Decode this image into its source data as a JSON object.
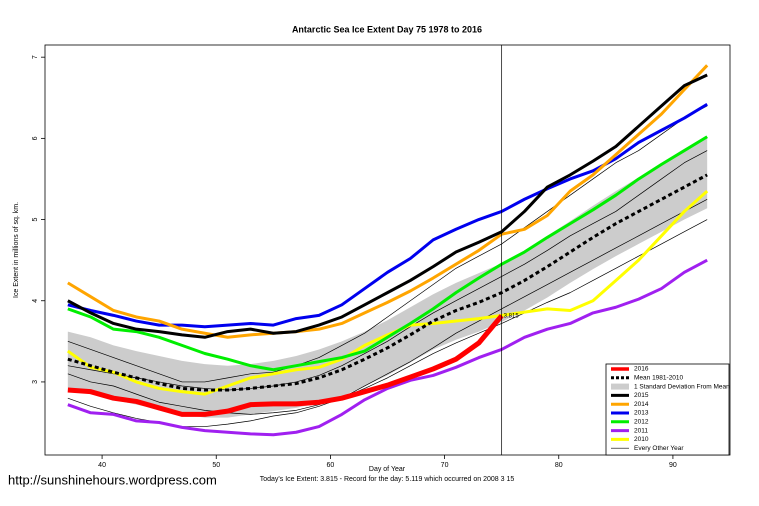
{
  "chart_data": {
    "type": "line",
    "title": "Antarctic Sea Ice Extent Day 75 1978 to 2016",
    "x_label": "Day of Year",
    "y_label": "Ice Extent in millions of sq. km.",
    "footer": "Today's Ice Extent: 3.815  - Record for the day: 5.119 which occurred on 2008 3 15",
    "watermark": "http://sunshinehours.wordpress.com",
    "xlim": [
      35,
      95
    ],
    "ylim": [
      2.1,
      7.15
    ],
    "xticks": [
      40,
      50,
      60,
      70,
      80,
      90
    ],
    "yticks": [
      3,
      4,
      5,
      6,
      7
    ],
    "marker": {
      "x": 75,
      "y": 3.815,
      "label": "3.815",
      "color": "#e05010"
    },
    "x": [
      37,
      39,
      41,
      43,
      45,
      47,
      49,
      51,
      53,
      55,
      57,
      59,
      61,
      63,
      65,
      67,
      69,
      71,
      73,
      75,
      77,
      79,
      81,
      83,
      85,
      87,
      89,
      91,
      93
    ],
    "series": [
      {
        "name": "2016",
        "color": "#ff0000",
        "width": 5,
        "values": [
          2.9,
          2.88,
          2.8,
          2.76,
          2.68,
          2.6,
          2.6,
          2.64,
          2.72,
          2.73,
          2.73,
          2.75,
          2.8,
          2.88,
          2.96,
          3.06,
          3.16,
          3.28,
          3.48,
          3.815,
          null,
          null,
          null,
          null,
          null,
          null,
          null,
          null,
          null
        ]
      },
      {
        "name": "Mean 1981-2010",
        "color": "#000000",
        "width": 3,
        "dashed": true,
        "values": [
          3.28,
          3.2,
          3.12,
          3.05,
          2.98,
          2.92,
          2.9,
          2.9,
          2.92,
          2.95,
          2.98,
          3.05,
          3.15,
          3.28,
          3.42,
          3.58,
          3.75,
          3.88,
          3.98,
          4.1,
          4.25,
          4.42,
          4.6,
          4.78,
          4.95,
          5.1,
          5.25,
          5.4,
          5.55
        ]
      },
      {
        "name": "1 Standard Deviation From Mean",
        "color": "#cccccc",
        "upper": [
          3.62,
          3.55,
          3.45,
          3.38,
          3.32,
          3.26,
          3.22,
          3.2,
          3.22,
          3.26,
          3.32,
          3.4,
          3.5,
          3.62,
          3.76,
          3.92,
          4.08,
          4.22,
          4.34,
          4.46,
          4.62,
          4.8,
          4.98,
          5.17,
          5.35,
          5.52,
          5.68,
          5.84,
          6.0
        ],
        "lower": [
          2.92,
          2.85,
          2.78,
          2.72,
          2.66,
          2.6,
          2.56,
          2.56,
          2.6,
          2.64,
          2.68,
          2.74,
          2.82,
          2.95,
          3.08,
          3.24,
          3.4,
          3.52,
          3.62,
          3.74,
          3.88,
          4.04,
          4.22,
          4.39,
          4.55,
          4.7,
          4.85,
          5.0,
          5.14
        ]
      },
      {
        "name": "2015",
        "color": "#000000",
        "width": 3,
        "values": [
          4.0,
          3.85,
          3.72,
          3.65,
          3.62,
          3.58,
          3.55,
          3.62,
          3.65,
          3.6,
          3.62,
          3.7,
          3.8,
          3.95,
          4.1,
          4.25,
          4.42,
          4.6,
          4.72,
          4.85,
          5.1,
          5.4,
          5.55,
          5.72,
          5.9,
          6.15,
          6.4,
          6.65,
          6.78
        ]
      },
      {
        "name": "2014",
        "color": "#ffa500",
        "width": 3,
        "values": [
          4.22,
          4.05,
          3.88,
          3.8,
          3.75,
          3.65,
          3.6,
          3.55,
          3.58,
          3.6,
          3.62,
          3.65,
          3.72,
          3.85,
          3.98,
          4.12,
          4.28,
          4.45,
          4.62,
          4.82,
          4.88,
          5.05,
          5.35,
          5.55,
          5.8,
          6.05,
          6.3,
          6.6,
          6.9
        ]
      },
      {
        "name": "2013",
        "color": "#0000ee",
        "width": 3,
        "values": [
          3.95,
          3.88,
          3.82,
          3.75,
          3.7,
          3.7,
          3.68,
          3.7,
          3.72,
          3.7,
          3.78,
          3.82,
          3.95,
          4.15,
          4.35,
          4.52,
          4.75,
          4.88,
          5.0,
          5.1,
          5.25,
          5.38,
          5.5,
          5.6,
          5.75,
          5.95,
          6.1,
          6.25,
          6.42
        ]
      },
      {
        "name": "2012",
        "color": "#00ee00",
        "width": 3,
        "values": [
          3.9,
          3.8,
          3.65,
          3.62,
          3.55,
          3.45,
          3.35,
          3.28,
          3.2,
          3.15,
          3.2,
          3.25,
          3.3,
          3.38,
          3.55,
          3.72,
          3.9,
          4.1,
          4.28,
          4.45,
          4.6,
          4.78,
          4.95,
          5.12,
          5.3,
          5.5,
          5.68,
          5.85,
          6.02
        ]
      },
      {
        "name": "2011",
        "color": "#a020f0",
        "width": 3,
        "values": [
          2.72,
          2.62,
          2.6,
          2.52,
          2.5,
          2.44,
          2.4,
          2.38,
          2.36,
          2.35,
          2.38,
          2.45,
          2.6,
          2.78,
          2.92,
          3.02,
          3.08,
          3.18,
          3.3,
          3.4,
          3.55,
          3.65,
          3.72,
          3.85,
          3.92,
          4.02,
          4.15,
          4.35,
          4.5
        ]
      },
      {
        "name": "2010",
        "color": "#ffff00",
        "width": 3,
        "values": [
          3.38,
          3.18,
          3.12,
          3.0,
          2.92,
          2.88,
          2.85,
          2.95,
          3.05,
          3.1,
          3.15,
          3.18,
          3.28,
          3.45,
          3.58,
          3.7,
          3.72,
          3.75,
          3.78,
          3.82,
          3.86,
          3.9,
          3.88,
          4.0,
          4.25,
          4.5,
          4.8,
          5.1,
          5.35
        ]
      },
      {
        "name": "Every Other Year",
        "color": "#000000",
        "width": 0.7,
        "lines": [
          [
            3.5,
            3.4,
            3.3,
            3.2,
            3.1,
            3.0,
            3.0,
            3.05,
            3.1,
            3.12,
            3.2,
            3.3,
            3.45,
            3.6,
            3.8,
            4.0,
            4.2,
            4.4,
            4.55,
            4.7,
            4.9,
            5.1,
            5.3,
            5.5,
            5.7,
            5.85,
            6.05,
            6.25,
            6.4
          ],
          [
            3.1,
            3.0,
            2.95,
            2.85,
            2.75,
            2.7,
            2.65,
            2.62,
            2.6,
            2.62,
            2.65,
            2.72,
            2.8,
            2.95,
            3.1,
            3.25,
            3.42,
            3.6,
            3.75,
            3.9,
            4.05,
            4.2,
            4.35,
            4.5,
            4.65,
            4.8,
            4.95,
            5.1,
            5.25
          ],
          [
            3.2,
            3.15,
            3.1,
            3.05,
            3.0,
            2.95,
            2.92,
            2.9,
            2.92,
            2.95,
            3.0,
            3.08,
            3.2,
            3.35,
            3.5,
            3.68,
            3.85,
            4.0,
            4.15,
            4.3,
            4.45,
            4.62,
            4.8,
            4.95,
            5.1,
            5.3,
            5.5,
            5.7,
            5.85
          ],
          [
            2.8,
            2.7,
            2.62,
            2.55,
            2.5,
            2.45,
            2.45,
            2.48,
            2.52,
            2.58,
            2.62,
            2.7,
            2.8,
            2.92,
            3.05,
            3.2,
            3.35,
            3.48,
            3.6,
            3.72,
            3.85,
            3.98,
            4.1,
            4.25,
            4.4,
            4.55,
            4.7,
            4.85,
            5.0
          ]
        ]
      }
    ]
  }
}
